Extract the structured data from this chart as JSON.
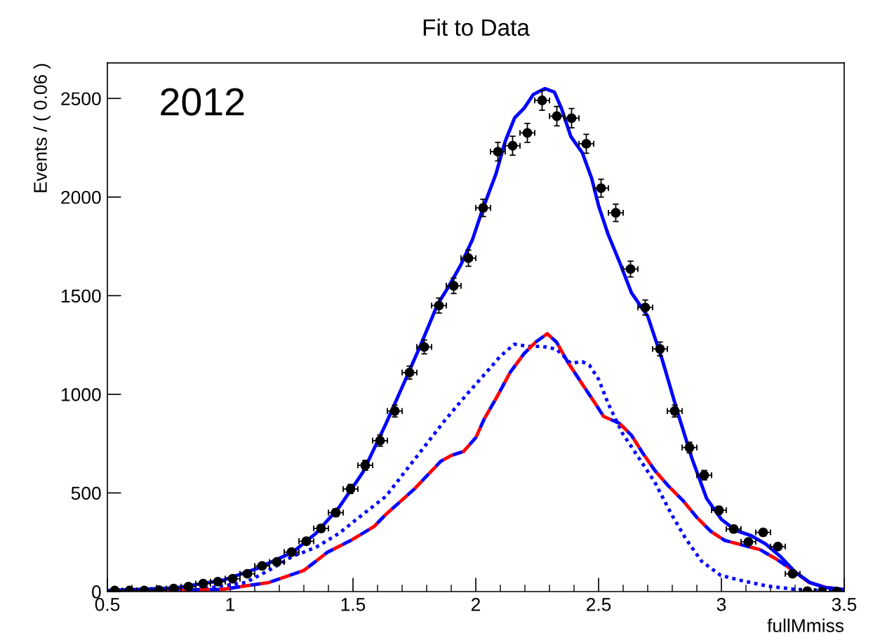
{
  "chart_data": {
    "type": "line",
    "title": "Fit to Data",
    "xlabel": "fullMmiss",
    "ylabel": "Events / ( 0.06 )",
    "annotations": [
      "2012"
    ],
    "xlim": [
      0.5,
      3.5
    ],
    "xticks": [
      0.5,
      1,
      1.5,
      2,
      2.5,
      3,
      3.5
    ],
    "ylim": [
      0,
      2680
    ],
    "yticks": [
      0,
      500,
      1000,
      1500,
      2000,
      2500
    ],
    "grid": false,
    "legend": false,
    "series": [
      {
        "color": "#0000ff",
        "line_style": "dotted",
        "x": [
          0.5,
          0.87,
          1.063,
          1.157,
          1.254,
          1.349,
          1.443,
          1.54,
          1.634,
          1.871,
          1.967,
          2.043,
          2.1,
          2.157,
          2.214,
          2.271,
          2.329,
          2.386,
          2.434,
          2.463,
          2.5,
          2.54,
          2.597,
          2.654,
          2.729,
          2.797,
          2.854,
          2.92,
          2.997,
          3.091,
          3.186,
          3.3,
          3.5
        ],
        "values": [
          2,
          10,
          46,
          107,
          178,
          224,
          295,
          391,
          483,
          863,
          1005,
          1111,
          1193,
          1254,
          1243,
          1243,
          1229,
          1158,
          1165,
          1147,
          1076,
          950,
          803,
          696,
          554,
          391,
          270,
          153,
          82,
          53,
          28,
          11,
          3
        ]
      },
      {
        "color": "#0000ff",
        "line_style": "dashed",
        "x": [
          0.5,
          0.969,
          1.157,
          1.3,
          1.396,
          1.491,
          1.586,
          1.634,
          1.75,
          1.857,
          1.9,
          1.95,
          2.0,
          2.034,
          2.083,
          2.14,
          2.197,
          2.243,
          2.291,
          2.329,
          2.377,
          2.434,
          2.491,
          2.52,
          2.586,
          2.634,
          2.683,
          2.729,
          2.786,
          2.843,
          2.9,
          2.957,
          3.014,
          3.091,
          3.157,
          3.226,
          3.291,
          3.357,
          3.426,
          3.5
        ],
        "values": [
          1,
          11,
          46,
          107,
          199,
          259,
          330,
          391,
          520,
          660,
          690,
          710,
          780,
          874,
          980,
          1111,
          1207,
          1264,
          1307,
          1264,
          1158,
          1051,
          945,
          888,
          852,
          792,
          696,
          614,
          533,
          462,
          376,
          305,
          259,
          234,
          213,
          163,
          107,
          46,
          21,
          10
        ]
      },
      {
        "color": "#ff0000",
        "line_style": "dashed",
        "x": [
          0.5,
          0.969,
          1.157,
          1.3,
          1.396,
          1.491,
          1.586,
          1.634,
          1.75,
          1.857,
          1.9,
          1.95,
          2.0,
          2.034,
          2.083,
          2.14,
          2.197,
          2.243,
          2.291,
          2.329,
          2.377,
          2.434,
          2.491,
          2.52,
          2.586,
          2.634,
          2.683,
          2.729,
          2.786,
          2.843,
          2.9,
          2.957,
          3.014,
          3.091,
          3.157,
          3.226,
          3.291,
          3.357,
          3.426,
          3.5
        ],
        "values": [
          1,
          11,
          46,
          107,
          199,
          259,
          330,
          391,
          520,
          660,
          690,
          710,
          780,
          874,
          980,
          1111,
          1207,
          1264,
          1307,
          1264,
          1158,
          1051,
          945,
          888,
          852,
          792,
          696,
          614,
          533,
          462,
          376,
          305,
          259,
          234,
          213,
          163,
          107,
          46,
          21,
          10
        ]
      },
      {
        "color": "#0000ff",
        "line_style": "solid",
        "x": [
          0.5,
          0.777,
          0.969,
          1.11,
          1.254,
          1.349,
          1.443,
          1.54,
          1.634,
          1.71,
          1.777,
          1.844,
          1.891,
          1.939,
          1.987,
          2.025,
          2.082,
          2.12,
          2.158,
          2.196,
          2.234,
          2.282,
          2.32,
          2.349,
          2.387,
          2.434,
          2.472,
          2.501,
          2.539,
          2.586,
          2.634,
          2.7,
          2.76,
          2.82,
          2.88,
          2.94,
          3.0,
          3.06,
          3.12,
          3.18,
          3.24,
          3.3,
          3.36,
          3.42,
          3.5
        ],
        "values": [
          5,
          18,
          57,
          117,
          199,
          295,
          426,
          604,
          850,
          1064,
          1254,
          1455,
          1549,
          1656,
          1786,
          1928,
          2117,
          2283,
          2401,
          2449,
          2520,
          2550,
          2532,
          2449,
          2307,
          2224,
          2094,
          1952,
          1810,
          1668,
          1514,
          1396,
          1172,
          916,
          675,
          472,
          366,
          309,
          284,
          241,
          178,
          100,
          46,
          21,
          10
        ]
      },
      {
        "type": "scatter",
        "color": "#000000",
        "marker": "circle",
        "x": [
          0.53,
          0.59,
          0.65,
          0.71,
          0.77,
          0.83,
          0.89,
          0.95,
          1.01,
          1.07,
          1.13,
          1.19,
          1.25,
          1.31,
          1.37,
          1.43,
          1.49,
          1.55,
          1.61,
          1.67,
          1.73,
          1.79,
          1.85,
          1.91,
          1.97,
          2.03,
          2.09,
          2.15,
          2.21,
          2.27,
          2.33,
          2.39,
          2.45,
          2.51,
          2.57,
          2.63,
          2.69,
          2.75,
          2.81,
          2.87,
          2.93,
          2.99,
          3.05,
          3.11,
          3.17,
          3.23,
          3.29,
          3.35,
          3.41,
          3.47
        ],
        "values": [
          5,
          5,
          5,
          7,
          15,
          25,
          40,
          50,
          65,
          90,
          130,
          150,
          200,
          255,
          320,
          400,
          520,
          640,
          765,
          915,
          1110,
          1240,
          1450,
          1550,
          1690,
          1945,
          2230,
          2260,
          2325,
          2490,
          2410,
          2400,
          2270,
          2045,
          1920,
          1635,
          1440,
          1230,
          915,
          730,
          590,
          412,
          317,
          252,
          300,
          228,
          90,
          2,
          0,
          0
        ],
        "errors": [
          2,
          2,
          2,
          3,
          4,
          5,
          6,
          7,
          8,
          9,
          11,
          12,
          14,
          16,
          18,
          20,
          23,
          25,
          28,
          30,
          33,
          35,
          38,
          39,
          41,
          44,
          47,
          48,
          48,
          50,
          49,
          49,
          48,
          45,
          44,
          40,
          38,
          35,
          30,
          27,
          24,
          20,
          18,
          16,
          17,
          15,
          9,
          1,
          0,
          0
        ],
        "xerrors": [
          0.03,
          0.03,
          0.03,
          0.03,
          0.03,
          0.03,
          0.03,
          0.03,
          0.03,
          0.03,
          0.03,
          0.03,
          0.03,
          0.03,
          0.03,
          0.03,
          0.03,
          0.03,
          0.03,
          0.03,
          0.03,
          0.03,
          0.03,
          0.03,
          0.03,
          0.03,
          0.03,
          0.03,
          0.03,
          0.03,
          0.03,
          0.03,
          0.03,
          0.03,
          0.03,
          0.03,
          0.03,
          0.03,
          0.03,
          0.03,
          0.03,
          0.03,
          0.03,
          0.03,
          0.03,
          0.03,
          0.03,
          0.03,
          0.03,
          0.03
        ]
      }
    ]
  }
}
